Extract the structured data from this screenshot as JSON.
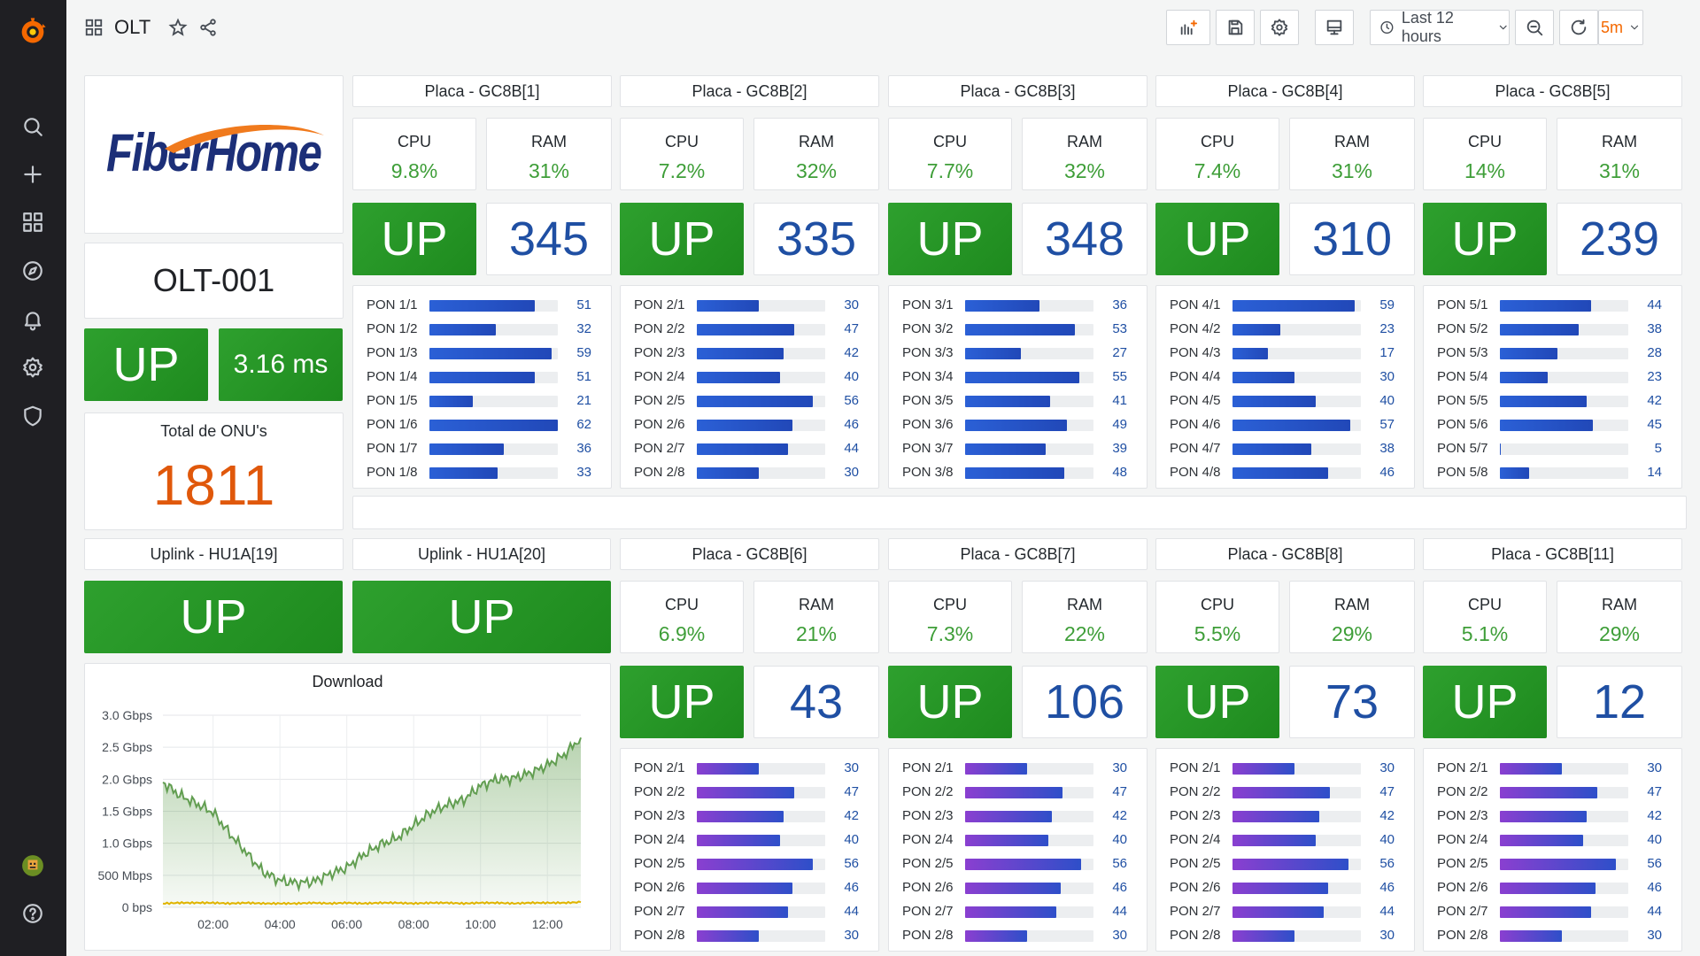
{
  "sidebar": {
    "icons": [
      "grafana-logo-icon",
      "search-icon",
      "plus-icon",
      "dashboards-icon",
      "explore-icon",
      "alerting-icon",
      "settings-icon",
      "shield-icon",
      "avatar",
      "help-icon"
    ]
  },
  "topbar": {
    "title": "OLT",
    "time_range": "Last 12 hours",
    "refresh": "5m"
  },
  "olt": {
    "logo_text": "FiberHome",
    "name": "OLT-001",
    "status": "UP",
    "latency": "3.16 ms",
    "total_label": "Total de ONU's",
    "total": "1811"
  },
  "uplinks": [
    {
      "title": "Uplink - HU1A[19]",
      "status": "UP"
    },
    {
      "title": "Uplink - HU1A[20]",
      "status": "UP"
    }
  ],
  "cards": [
    {
      "title": "Placa - GC8B[1]",
      "cpu_label": "CPU",
      "cpu": "9.8%",
      "ram_label": "RAM",
      "ram": "31%",
      "status": "UP",
      "onus": "345",
      "pons": [
        {
          "l": "PON 1/1",
          "v": 51
        },
        {
          "l": "PON 1/2",
          "v": 32
        },
        {
          "l": "PON 1/3",
          "v": 59
        },
        {
          "l": "PON 1/4",
          "v": 51
        },
        {
          "l": "PON 1/5",
          "v": 21
        },
        {
          "l": "PON 1/6",
          "v": 62
        },
        {
          "l": "PON 1/7",
          "v": 36
        },
        {
          "l": "PON 1/8",
          "v": 33
        }
      ]
    },
    {
      "title": "Placa - GC8B[2]",
      "cpu_label": "CPU",
      "cpu": "7.2%",
      "ram_label": "RAM",
      "ram": "32%",
      "status": "UP",
      "onus": "335",
      "pons": [
        {
          "l": "PON 2/1",
          "v": 30
        },
        {
          "l": "PON 2/2",
          "v": 47
        },
        {
          "l": "PON 2/3",
          "v": 42
        },
        {
          "l": "PON 2/4",
          "v": 40
        },
        {
          "l": "PON 2/5",
          "v": 56
        },
        {
          "l": "PON 2/6",
          "v": 46
        },
        {
          "l": "PON 2/7",
          "v": 44
        },
        {
          "l": "PON 2/8",
          "v": 30
        }
      ]
    },
    {
      "title": "Placa - GC8B[3]",
      "cpu_label": "CPU",
      "cpu": "7.7%",
      "ram_label": "RAM",
      "ram": "32%",
      "status": "UP",
      "onus": "348",
      "pons": [
        {
          "l": "PON 3/1",
          "v": 36
        },
        {
          "l": "PON 3/2",
          "v": 53
        },
        {
          "l": "PON 3/3",
          "v": 27
        },
        {
          "l": "PON 3/4",
          "v": 55
        },
        {
          "l": "PON 3/5",
          "v": 41
        },
        {
          "l": "PON 3/6",
          "v": 49
        },
        {
          "l": "PON 3/7",
          "v": 39
        },
        {
          "l": "PON 3/8",
          "v": 48
        }
      ]
    },
    {
      "title": "Placa - GC8B[4]",
      "cpu_label": "CPU",
      "cpu": "7.4%",
      "ram_label": "RAM",
      "ram": "31%",
      "status": "UP",
      "onus": "310",
      "pons": [
        {
          "l": "PON 4/1",
          "v": 59
        },
        {
          "l": "PON 4/2",
          "v": 23
        },
        {
          "l": "PON 4/3",
          "v": 17
        },
        {
          "l": "PON 4/4",
          "v": 30
        },
        {
          "l": "PON 4/5",
          "v": 40
        },
        {
          "l": "PON 4/6",
          "v": 57
        },
        {
          "l": "PON 4/7",
          "v": 38
        },
        {
          "l": "PON 4/8",
          "v": 46
        }
      ]
    },
    {
      "title": "Placa - GC8B[5]",
      "cpu_label": "CPU",
      "cpu": "14%",
      "ram_label": "RAM",
      "ram": "31%",
      "status": "UP",
      "onus": "239",
      "pons": [
        {
          "l": "PON 5/1",
          "v": 44
        },
        {
          "l": "PON 5/2",
          "v": 38
        },
        {
          "l": "PON 5/3",
          "v": 28
        },
        {
          "l": "PON 5/4",
          "v": 23
        },
        {
          "l": "PON 5/5",
          "v": 42
        },
        {
          "l": "PON 5/6",
          "v": 45
        },
        {
          "l": "PON 5/7",
          "v": 5
        },
        {
          "l": "PON 5/8",
          "v": 14
        }
      ]
    },
    {
      "title": "Placa - GC8B[6]",
      "cpu_label": "CPU",
      "cpu": "6.9%",
      "ram_label": "RAM",
      "ram": "21%",
      "status": "UP",
      "onus": "43",
      "pons": [
        {
          "l": "PON 2/1",
          "v": 30
        },
        {
          "l": "PON 2/2",
          "v": 47
        },
        {
          "l": "PON 2/3",
          "v": 42
        },
        {
          "l": "PON 2/4",
          "v": 40
        },
        {
          "l": "PON 2/5",
          "v": 56
        },
        {
          "l": "PON 2/6",
          "v": 46
        },
        {
          "l": "PON 2/7",
          "v": 44
        },
        {
          "l": "PON 2/8",
          "v": 30
        }
      ]
    },
    {
      "title": "Placa - GC8B[7]",
      "cpu_label": "CPU",
      "cpu": "7.3%",
      "ram_label": "RAM",
      "ram": "22%",
      "status": "UP",
      "onus": "106",
      "pons": [
        {
          "l": "PON 2/1",
          "v": 30
        },
        {
          "l": "PON 2/2",
          "v": 47
        },
        {
          "l": "PON 2/3",
          "v": 42
        },
        {
          "l": "PON 2/4",
          "v": 40
        },
        {
          "l": "PON 2/5",
          "v": 56
        },
        {
          "l": "PON 2/6",
          "v": 46
        },
        {
          "l": "PON 2/7",
          "v": 44
        },
        {
          "l": "PON 2/8",
          "v": 30
        }
      ]
    },
    {
      "title": "Placa - GC8B[8]",
      "cpu_label": "CPU",
      "cpu": "5.5%",
      "ram_label": "RAM",
      "ram": "29%",
      "status": "UP",
      "onus": "73",
      "pons": [
        {
          "l": "PON 2/1",
          "v": 30
        },
        {
          "l": "PON 2/2",
          "v": 47
        },
        {
          "l": "PON 2/3",
          "v": 42
        },
        {
          "l": "PON 2/4",
          "v": 40
        },
        {
          "l": "PON 2/5",
          "v": 56
        },
        {
          "l": "PON 2/6",
          "v": 46
        },
        {
          "l": "PON 2/7",
          "v": 44
        },
        {
          "l": "PON 2/8",
          "v": 30
        }
      ]
    },
    {
      "title": "Placa - GC8B[11]",
      "cpu_label": "CPU",
      "cpu": "5.1%",
      "ram_label": "RAM",
      "ram": "29%",
      "status": "UP",
      "onus": "12",
      "pons": [
        {
          "l": "PON 2/1",
          "v": 30
        },
        {
          "l": "PON 2/2",
          "v": 47
        },
        {
          "l": "PON 2/3",
          "v": 42
        },
        {
          "l": "PON 2/4",
          "v": 40
        },
        {
          "l": "PON 2/5",
          "v": 56
        },
        {
          "l": "PON 2/6",
          "v": 46
        },
        {
          "l": "PON 2/7",
          "v": 44
        },
        {
          "l": "PON 2/8",
          "v": 30
        }
      ]
    }
  ],
  "chart_data": {
    "type": "area",
    "title": "Download",
    "ylabel_ticks": [
      "0 bps",
      "500 Mbps",
      "1.0 Gbps",
      "1.5 Gbps",
      "2.0 Gbps",
      "2.5 Gbps",
      "3.0 Gbps"
    ],
    "x_ticks": [
      "02:00",
      "04:00",
      "06:00",
      "08:00",
      "10:00",
      "12:00"
    ],
    "ylim_gbps": [
      0,
      3.0
    ],
    "series": [
      {
        "color": "#629e51",
        "x": [
          "00:30",
          "01:00",
          "01:30",
          "02:00",
          "02:30",
          "03:00",
          "03:30",
          "04:00",
          "04:30",
          "05:00",
          "05:30",
          "06:00",
          "06:30",
          "07:00",
          "07:30",
          "08:00",
          "08:30",
          "09:00",
          "09:30",
          "10:00",
          "10:30",
          "11:00",
          "11:30",
          "12:00",
          "12:30",
          "13:00"
        ],
        "values": [
          1.95,
          1.75,
          1.62,
          1.48,
          1.15,
          0.85,
          0.55,
          0.42,
          0.38,
          0.4,
          0.52,
          0.62,
          0.82,
          0.98,
          1.08,
          1.28,
          1.48,
          1.6,
          1.68,
          1.9,
          2.0,
          2.02,
          2.1,
          2.22,
          2.38,
          2.65
        ]
      },
      {
        "color": "#e0b400",
        "x": [
          "00:30",
          "01:00",
          "01:30",
          "02:00",
          "02:30",
          "03:00",
          "03:30",
          "04:00",
          "04:30",
          "05:00",
          "05:30",
          "06:00",
          "06:30",
          "07:00",
          "07:30",
          "08:00",
          "08:30",
          "09:00",
          "09:30",
          "10:00",
          "10:30",
          "11:00",
          "11:30",
          "12:00",
          "12:30",
          "13:00"
        ],
        "values": [
          0.06,
          0.07,
          0.07,
          0.07,
          0.06,
          0.07,
          0.06,
          0.06,
          0.06,
          0.07,
          0.06,
          0.07,
          0.06,
          0.07,
          0.07,
          0.06,
          0.07,
          0.07,
          0.06,
          0.07,
          0.07,
          0.06,
          0.07,
          0.07,
          0.07,
          0.08
        ]
      }
    ]
  }
}
